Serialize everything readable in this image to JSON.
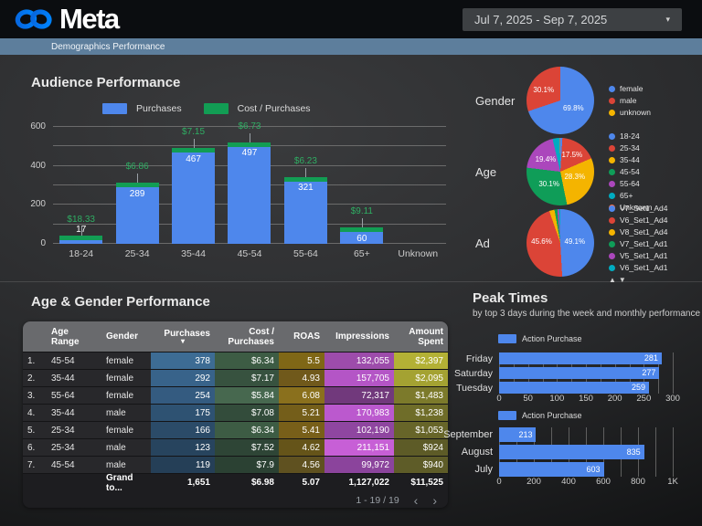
{
  "header": {
    "brand": "Meta",
    "date_range": "Jul 7, 2025 - Sep 7, 2025",
    "tab": "Demographics Performance"
  },
  "peak_times": {
    "title": "Peak Times",
    "subtitle": "by top 3 days during the week and monthly performance"
  },
  "chart_data": [
    {
      "id": "audience",
      "type": "bar",
      "title": "Audience Performance",
      "categories": [
        "18-24",
        "25-34",
        "35-44",
        "45-54",
        "55-64",
        "65+",
        "Unknown"
      ],
      "series": [
        {
          "name": "Purchases",
          "color": "#4e87ec",
          "values": [
            17,
            289,
            467,
            497,
            321,
            60,
            null
          ]
        },
        {
          "name": "Cost / Purchases",
          "color": "#129d54",
          "labels": [
            "$18.33",
            "$6.86",
            "$7.15",
            "$6.73",
            "$6.23",
            "$9.11",
            null
          ]
        }
      ],
      "ylim": [
        0,
        600
      ],
      "y_ticks": [
        600,
        400,
        200,
        0
      ],
      "grid": true,
      "legend_position": "top"
    },
    {
      "id": "gender",
      "type": "pie",
      "title": "Gender",
      "slices": [
        {
          "name": "female",
          "pct": 69.8,
          "color": "#4e87ec",
          "pct_label": "69.8%"
        },
        {
          "name": "male",
          "pct": 30.1,
          "color": "#db4437",
          "pct_label": "30.1%"
        },
        {
          "name": "unknown",
          "pct": 0.1,
          "color": "#f4b400"
        }
      ]
    },
    {
      "id": "age",
      "type": "pie",
      "title": "Age",
      "slices": [
        {
          "name": "18-24",
          "pct": 1.0,
          "color": "#4e87ec"
        },
        {
          "name": "25-34",
          "pct": 17.5,
          "color": "#db4437",
          "pct_label": "17.5%"
        },
        {
          "name": "35-44",
          "pct": 28.3,
          "color": "#f4b400",
          "pct_label": "28.3%"
        },
        {
          "name": "45-54",
          "pct": 30.1,
          "color": "#0f9d58",
          "pct_label": "30.1%"
        },
        {
          "name": "55-64",
          "pct": 19.4,
          "color": "#ab47bc",
          "pct_label": "19.4%"
        },
        {
          "name": "65+",
          "pct": 3.5,
          "color": "#00acc1"
        },
        {
          "name": "Unknown",
          "pct": 0.2,
          "color": "#ff7043"
        }
      ]
    },
    {
      "id": "ad",
      "type": "pie",
      "title": "Ad",
      "scroll_arrows": true,
      "slices": [
        {
          "name": "V7_Set1_Ad4",
          "pct": 49.1,
          "color": "#4e87ec",
          "pct_label": "49.1%"
        },
        {
          "name": "V6_Set1_Ad4",
          "pct": 45.6,
          "color": "#db4437",
          "pct_label": "45.6%"
        },
        {
          "name": "V8_Set1_Ad4",
          "pct": 2.5,
          "color": "#f4b400"
        },
        {
          "name": "V7_Set1_Ad1",
          "pct": 1.4,
          "color": "#0f9d58"
        },
        {
          "name": "V5_Set1_Ad1",
          "pct": 0.8,
          "color": "#ab47bc"
        },
        {
          "name": "V6_Set1_Ad1",
          "pct": 0.6,
          "color": "#00acc1"
        }
      ]
    },
    {
      "id": "weekly",
      "type": "bar",
      "orientation": "horizontal",
      "legend": "Action Purchase",
      "color": "#4e87ec",
      "categories": [
        "Friday",
        "Saturday",
        "Tuesday"
      ],
      "values": [
        281,
        277,
        259
      ],
      "xlim": [
        0,
        300
      ],
      "x_ticks": [
        0,
        50,
        100,
        150,
        200,
        250,
        300
      ],
      "tick_labels": [
        "0",
        "50",
        "100",
        "150",
        "200",
        "250",
        "300"
      ],
      "grid_step": 25
    },
    {
      "id": "monthly",
      "type": "bar",
      "orientation": "horizontal",
      "legend": "Action Purchase",
      "color": "#4e87ec",
      "categories": [
        "September",
        "August",
        "July"
      ],
      "values": [
        213,
        835,
        603
      ],
      "xlim": [
        0,
        1000
      ],
      "x_ticks": [
        0,
        200,
        400,
        600,
        800,
        1000
      ],
      "tick_labels": [
        "0",
        "200",
        "400",
        "600",
        "800",
        "1K"
      ],
      "grid_step": 100
    }
  ],
  "table": {
    "title": "Age & Gender Performance",
    "columns": [
      "",
      "Age Range",
      "Gender",
      "Purchases",
      "Cost / Purchases",
      "ROAS",
      "Impressions",
      "Amount Spent"
    ],
    "sort": {
      "column": "Purchases",
      "direction": "desc"
    },
    "rows": [
      {
        "num": "1.",
        "age": "45-54",
        "gender": "female",
        "purchases": "378",
        "cost": "$6.34",
        "roas": "5.5",
        "impressions": "132,055",
        "amount": "$2,397",
        "colors": {
          "purchases": "#3d6c94",
          "cost": "#3d5c44",
          "roas": "#7f6716",
          "impressions": "#9d4cab",
          "amount": "#b3b135"
        }
      },
      {
        "num": "2.",
        "age": "35-44",
        "gender": "female",
        "purchases": "292",
        "cost": "$7.17",
        "roas": "4.93",
        "impressions": "157,705",
        "amount": "$2,095",
        "colors": {
          "purchases": "#38638a",
          "cost": "#37523f",
          "roas": "#70591b",
          "impressions": "#b455c6",
          "amount": "#a4a232"
        }
      },
      {
        "num": "3.",
        "age": "55-64",
        "gender": "female",
        "purchases": "254",
        "cost": "$5.84",
        "roas": "6.08",
        "impressions": "72,317",
        "amount": "$1,483",
        "colors": {
          "purchases": "#345b80",
          "cost": "#47684f",
          "roas": "#8a701d",
          "impressions": "#71397c",
          "amount": "#7c7a2b"
        }
      },
      {
        "num": "4.",
        "age": "35-44",
        "gender": "male",
        "purchases": "175",
        "cost": "$7.08",
        "roas": "5.21",
        "impressions": "170,983",
        "amount": "$1,238",
        "colors": {
          "purchases": "#2e5272",
          "cost": "#334c3b",
          "roas": "#745e1a",
          "impressions": "#bb59ce",
          "amount": "#6f6d29"
        }
      },
      {
        "num": "5.",
        "age": "25-34",
        "gender": "female",
        "purchases": "166",
        "cost": "$6.34",
        "roas": "5.41",
        "impressions": "102,190",
        "amount": "$1,053",
        "colors": {
          "purchases": "#2b4b68",
          "cost": "#3d5c44",
          "roas": "#785f19",
          "impressions": "#8f46a0",
          "amount": "#676529"
        }
      },
      {
        "num": "6.",
        "age": "25-34",
        "gender": "male",
        "purchases": "123",
        "cost": "$7.52",
        "roas": "4.62",
        "impressions": "211,151",
        "amount": "$924",
        "colors": {
          "purchases": "#27445e",
          "cost": "#2e4536",
          "roas": "#655419",
          "impressions": "#c75fd6",
          "amount": "#5d5b27"
        }
      },
      {
        "num": "7.",
        "age": "45-54",
        "gender": "male",
        "purchases": "119",
        "cost": "$7.9",
        "roas": "4.56",
        "impressions": "99,972",
        "amount": "$940",
        "colors": {
          "purchases": "#253f57",
          "cost": "#2b4133",
          "roas": "#5f5120",
          "impressions": "#8b449c",
          "amount": "#5e5c28"
        }
      }
    ],
    "grand_total": {
      "label": "Grand to...",
      "purchases": "1,651",
      "cost": "$6.98",
      "roas": "5.07",
      "impressions": "1,127,022",
      "amount": "$11,525"
    },
    "pagination": "1 - 19 / 19"
  }
}
